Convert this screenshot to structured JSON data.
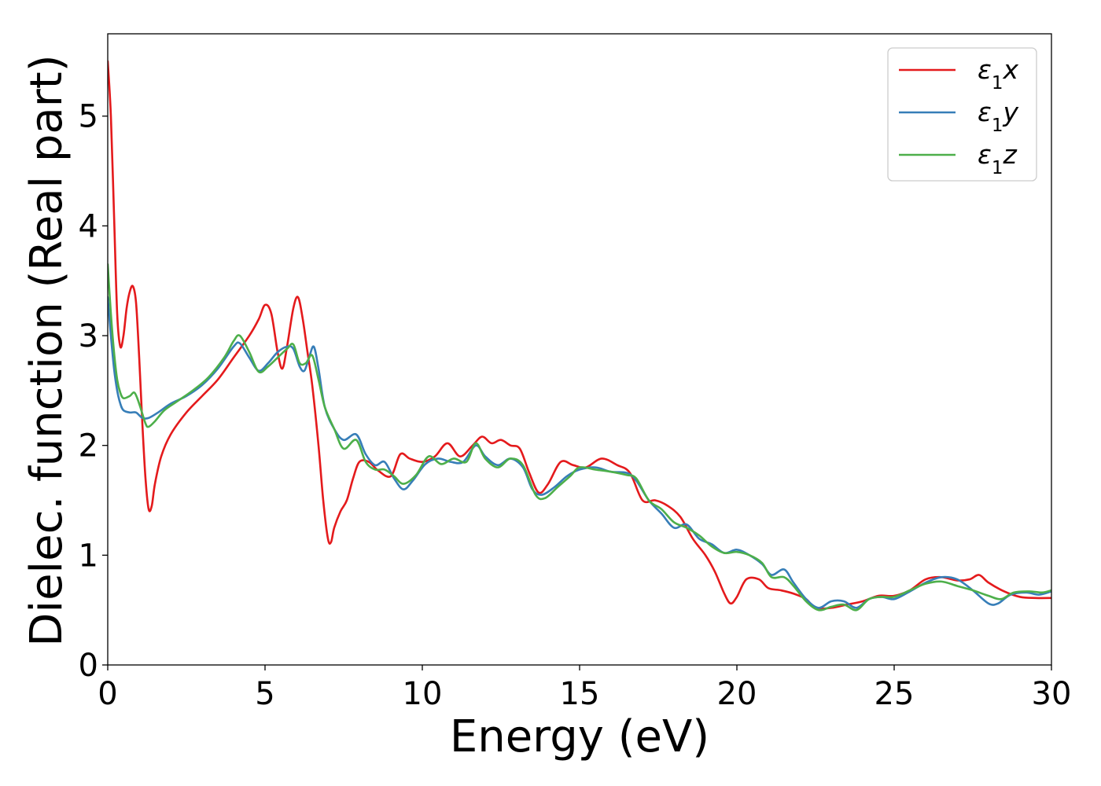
{
  "chart_data": {
    "type": "line",
    "xlabel": "Energy (eV)",
    "ylabel": "Dielec. function (Real part)",
    "xlim": [
      0,
      30
    ],
    "ylim": [
      0,
      5.75
    ],
    "xticks": [
      0,
      5,
      10,
      15,
      20,
      25,
      30
    ],
    "yticks": [
      0,
      1,
      2,
      3,
      4,
      5
    ],
    "grid": false,
    "legend_position": "top-right",
    "series": [
      {
        "name": "ε₁x",
        "legend": {
          "base": "ε",
          "sub": "1",
          "suffix": "x"
        },
        "color": "#e41a1c",
        "points": [
          [
            0,
            5.5
          ],
          [
            0.1,
            5.0
          ],
          [
            0.2,
            4.1
          ],
          [
            0.3,
            3.2
          ],
          [
            0.4,
            2.9
          ],
          [
            0.5,
            3.0
          ],
          [
            0.6,
            3.25
          ],
          [
            0.7,
            3.4
          ],
          [
            0.8,
            3.45
          ],
          [
            0.9,
            3.3
          ],
          [
            1.0,
            2.8
          ],
          [
            1.1,
            2.2
          ],
          [
            1.2,
            1.7
          ],
          [
            1.3,
            1.42
          ],
          [
            1.4,
            1.45
          ],
          [
            1.5,
            1.65
          ],
          [
            1.7,
            1.9
          ],
          [
            2.0,
            2.1
          ],
          [
            2.5,
            2.3
          ],
          [
            3.0,
            2.45
          ],
          [
            3.5,
            2.6
          ],
          [
            4.0,
            2.8
          ],
          [
            4.5,
            3.0
          ],
          [
            4.8,
            3.15
          ],
          [
            5.0,
            3.28
          ],
          [
            5.2,
            3.2
          ],
          [
            5.4,
            2.85
          ],
          [
            5.55,
            2.7
          ],
          [
            5.7,
            2.9
          ],
          [
            5.9,
            3.25
          ],
          [
            6.05,
            3.35
          ],
          [
            6.2,
            3.15
          ],
          [
            6.35,
            2.85
          ],
          [
            6.5,
            2.55
          ],
          [
            6.7,
            2.0
          ],
          [
            6.85,
            1.5
          ],
          [
            7.0,
            1.15
          ],
          [
            7.1,
            1.12
          ],
          [
            7.2,
            1.25
          ],
          [
            7.4,
            1.4
          ],
          [
            7.6,
            1.5
          ],
          [
            7.8,
            1.7
          ],
          [
            8.0,
            1.85
          ],
          [
            8.3,
            1.85
          ],
          [
            8.6,
            1.77
          ],
          [
            9.0,
            1.72
          ],
          [
            9.3,
            1.92
          ],
          [
            9.6,
            1.88
          ],
          [
            10.0,
            1.85
          ],
          [
            10.4,
            1.9
          ],
          [
            10.8,
            2.02
          ],
          [
            11.2,
            1.9
          ],
          [
            11.6,
            2.0
          ],
          [
            11.9,
            2.08
          ],
          [
            12.2,
            2.02
          ],
          [
            12.5,
            2.05
          ],
          [
            12.8,
            2.0
          ],
          [
            13.1,
            1.97
          ],
          [
            13.4,
            1.75
          ],
          [
            13.7,
            1.57
          ],
          [
            14.0,
            1.65
          ],
          [
            14.4,
            1.85
          ],
          [
            14.8,
            1.82
          ],
          [
            15.2,
            1.8
          ],
          [
            15.7,
            1.88
          ],
          [
            16.2,
            1.82
          ],
          [
            16.6,
            1.75
          ],
          [
            17.0,
            1.5
          ],
          [
            17.4,
            1.5
          ],
          [
            17.8,
            1.45
          ],
          [
            18.2,
            1.35
          ],
          [
            18.6,
            1.15
          ],
          [
            19.0,
            1.0
          ],
          [
            19.3,
            0.85
          ],
          [
            19.6,
            0.65
          ],
          [
            19.8,
            0.56
          ],
          [
            20.0,
            0.62
          ],
          [
            20.3,
            0.78
          ],
          [
            20.7,
            0.78
          ],
          [
            21.0,
            0.7
          ],
          [
            21.4,
            0.68
          ],
          [
            21.8,
            0.65
          ],
          [
            22.2,
            0.6
          ],
          [
            22.5,
            0.52
          ],
          [
            23.0,
            0.52
          ],
          [
            23.5,
            0.55
          ],
          [
            24.0,
            0.58
          ],
          [
            24.5,
            0.63
          ],
          [
            25.0,
            0.63
          ],
          [
            25.5,
            0.68
          ],
          [
            26.0,
            0.78
          ],
          [
            26.5,
            0.8
          ],
          [
            27.0,
            0.77
          ],
          [
            27.4,
            0.78
          ],
          [
            27.7,
            0.82
          ],
          [
            28.0,
            0.75
          ],
          [
            28.5,
            0.67
          ],
          [
            29.0,
            0.62
          ],
          [
            29.5,
            0.61
          ],
          [
            30.0,
            0.61
          ]
        ]
      },
      {
        "name": "ε₁y",
        "legend": {
          "base": "ε",
          "sub": "1",
          "suffix": "y"
        },
        "color": "#377eb8",
        "points": [
          [
            0,
            3.35
          ],
          [
            0.1,
            3.0
          ],
          [
            0.2,
            2.7
          ],
          [
            0.3,
            2.5
          ],
          [
            0.4,
            2.38
          ],
          [
            0.5,
            2.32
          ],
          [
            0.7,
            2.3
          ],
          [
            0.9,
            2.3
          ],
          [
            1.1,
            2.25
          ],
          [
            1.3,
            2.25
          ],
          [
            1.6,
            2.3
          ],
          [
            2.0,
            2.38
          ],
          [
            2.5,
            2.45
          ],
          [
            3.0,
            2.55
          ],
          [
            3.5,
            2.7
          ],
          [
            4.0,
            2.9
          ],
          [
            4.2,
            2.93
          ],
          [
            4.5,
            2.8
          ],
          [
            4.8,
            2.68
          ],
          [
            5.1,
            2.75
          ],
          [
            5.4,
            2.85
          ],
          [
            5.7,
            2.9
          ],
          [
            5.9,
            2.88
          ],
          [
            6.1,
            2.72
          ],
          [
            6.25,
            2.68
          ],
          [
            6.4,
            2.8
          ],
          [
            6.55,
            2.9
          ],
          [
            6.7,
            2.7
          ],
          [
            6.9,
            2.35
          ],
          [
            7.2,
            2.15
          ],
          [
            7.5,
            2.05
          ],
          [
            7.9,
            2.1
          ],
          [
            8.2,
            1.92
          ],
          [
            8.5,
            1.82
          ],
          [
            8.8,
            1.85
          ],
          [
            9.1,
            1.7
          ],
          [
            9.4,
            1.6
          ],
          [
            9.7,
            1.68
          ],
          [
            10.1,
            1.83
          ],
          [
            10.5,
            1.88
          ],
          [
            10.9,
            1.85
          ],
          [
            11.3,
            1.85
          ],
          [
            11.7,
            2.0
          ],
          [
            12.0,
            1.9
          ],
          [
            12.4,
            1.82
          ],
          [
            12.8,
            1.88
          ],
          [
            13.2,
            1.8
          ],
          [
            13.5,
            1.6
          ],
          [
            13.8,
            1.55
          ],
          [
            14.2,
            1.62
          ],
          [
            14.6,
            1.72
          ],
          [
            15.0,
            1.78
          ],
          [
            15.5,
            1.8
          ],
          [
            16.0,
            1.76
          ],
          [
            16.5,
            1.75
          ],
          [
            16.8,
            1.68
          ],
          [
            17.2,
            1.5
          ],
          [
            17.6,
            1.38
          ],
          [
            18.0,
            1.25
          ],
          [
            18.4,
            1.28
          ],
          [
            18.8,
            1.15
          ],
          [
            19.2,
            1.1
          ],
          [
            19.6,
            1.02
          ],
          [
            20.0,
            1.05
          ],
          [
            20.4,
            1.0
          ],
          [
            20.8,
            0.92
          ],
          [
            21.1,
            0.82
          ],
          [
            21.5,
            0.87
          ],
          [
            21.8,
            0.75
          ],
          [
            22.2,
            0.6
          ],
          [
            22.6,
            0.52
          ],
          [
            23.0,
            0.58
          ],
          [
            23.4,
            0.58
          ],
          [
            23.8,
            0.52
          ],
          [
            24.2,
            0.6
          ],
          [
            24.6,
            0.62
          ],
          [
            25.0,
            0.6
          ],
          [
            25.5,
            0.67
          ],
          [
            26.0,
            0.75
          ],
          [
            26.5,
            0.8
          ],
          [
            27.0,
            0.78
          ],
          [
            27.5,
            0.68
          ],
          [
            28.0,
            0.56
          ],
          [
            28.3,
            0.56
          ],
          [
            28.7,
            0.64
          ],
          [
            29.2,
            0.66
          ],
          [
            29.6,
            0.64
          ],
          [
            30.0,
            0.67
          ]
        ]
      },
      {
        "name": "ε₁z",
        "legend": {
          "base": "ε",
          "sub": "1",
          "suffix": "z"
        },
        "color": "#4daf4a",
        "points": [
          [
            0,
            3.65
          ],
          [
            0.1,
            3.2
          ],
          [
            0.2,
            2.85
          ],
          [
            0.3,
            2.6
          ],
          [
            0.4,
            2.48
          ],
          [
            0.5,
            2.43
          ],
          [
            0.7,
            2.45
          ],
          [
            0.85,
            2.48
          ],
          [
            1.0,
            2.38
          ],
          [
            1.2,
            2.2
          ],
          [
            1.3,
            2.17
          ],
          [
            1.5,
            2.22
          ],
          [
            1.8,
            2.32
          ],
          [
            2.2,
            2.4
          ],
          [
            2.7,
            2.5
          ],
          [
            3.2,
            2.62
          ],
          [
            3.7,
            2.8
          ],
          [
            4.0,
            2.95
          ],
          [
            4.2,
            3.0
          ],
          [
            4.5,
            2.85
          ],
          [
            4.8,
            2.67
          ],
          [
            5.1,
            2.72
          ],
          [
            5.4,
            2.8
          ],
          [
            5.7,
            2.88
          ],
          [
            5.9,
            2.92
          ],
          [
            6.1,
            2.75
          ],
          [
            6.3,
            2.75
          ],
          [
            6.5,
            2.82
          ],
          [
            6.7,
            2.6
          ],
          [
            6.9,
            2.35
          ],
          [
            7.2,
            2.15
          ],
          [
            7.5,
            1.97
          ],
          [
            7.9,
            2.05
          ],
          [
            8.2,
            1.85
          ],
          [
            8.5,
            1.78
          ],
          [
            8.8,
            1.78
          ],
          [
            9.1,
            1.72
          ],
          [
            9.4,
            1.65
          ],
          [
            9.8,
            1.73
          ],
          [
            10.2,
            1.9
          ],
          [
            10.6,
            1.83
          ],
          [
            11.0,
            1.88
          ],
          [
            11.4,
            1.85
          ],
          [
            11.7,
            2.02
          ],
          [
            12.0,
            1.88
          ],
          [
            12.4,
            1.8
          ],
          [
            12.8,
            1.88
          ],
          [
            13.2,
            1.82
          ],
          [
            13.6,
            1.55
          ],
          [
            13.9,
            1.52
          ],
          [
            14.3,
            1.62
          ],
          [
            14.7,
            1.72
          ],
          [
            15.0,
            1.8
          ],
          [
            15.5,
            1.78
          ],
          [
            16.0,
            1.76
          ],
          [
            16.5,
            1.73
          ],
          [
            16.8,
            1.7
          ],
          [
            17.2,
            1.5
          ],
          [
            17.6,
            1.42
          ],
          [
            18.0,
            1.3
          ],
          [
            18.4,
            1.25
          ],
          [
            18.8,
            1.18
          ],
          [
            19.2,
            1.08
          ],
          [
            19.6,
            1.02
          ],
          [
            20.0,
            1.03
          ],
          [
            20.4,
            1.0
          ],
          [
            20.8,
            0.93
          ],
          [
            21.1,
            0.8
          ],
          [
            21.5,
            0.8
          ],
          [
            21.8,
            0.72
          ],
          [
            22.2,
            0.58
          ],
          [
            22.6,
            0.5
          ],
          [
            23.0,
            0.53
          ],
          [
            23.4,
            0.55
          ],
          [
            23.8,
            0.5
          ],
          [
            24.2,
            0.6
          ],
          [
            24.6,
            0.62
          ],
          [
            25.0,
            0.62
          ],
          [
            25.5,
            0.68
          ],
          [
            26.0,
            0.74
          ],
          [
            26.5,
            0.76
          ],
          [
            27.0,
            0.72
          ],
          [
            27.5,
            0.68
          ],
          [
            28.0,
            0.63
          ],
          [
            28.4,
            0.6
          ],
          [
            28.8,
            0.66
          ],
          [
            29.3,
            0.67
          ],
          [
            29.7,
            0.66
          ],
          [
            30.0,
            0.68
          ]
        ]
      }
    ]
  }
}
